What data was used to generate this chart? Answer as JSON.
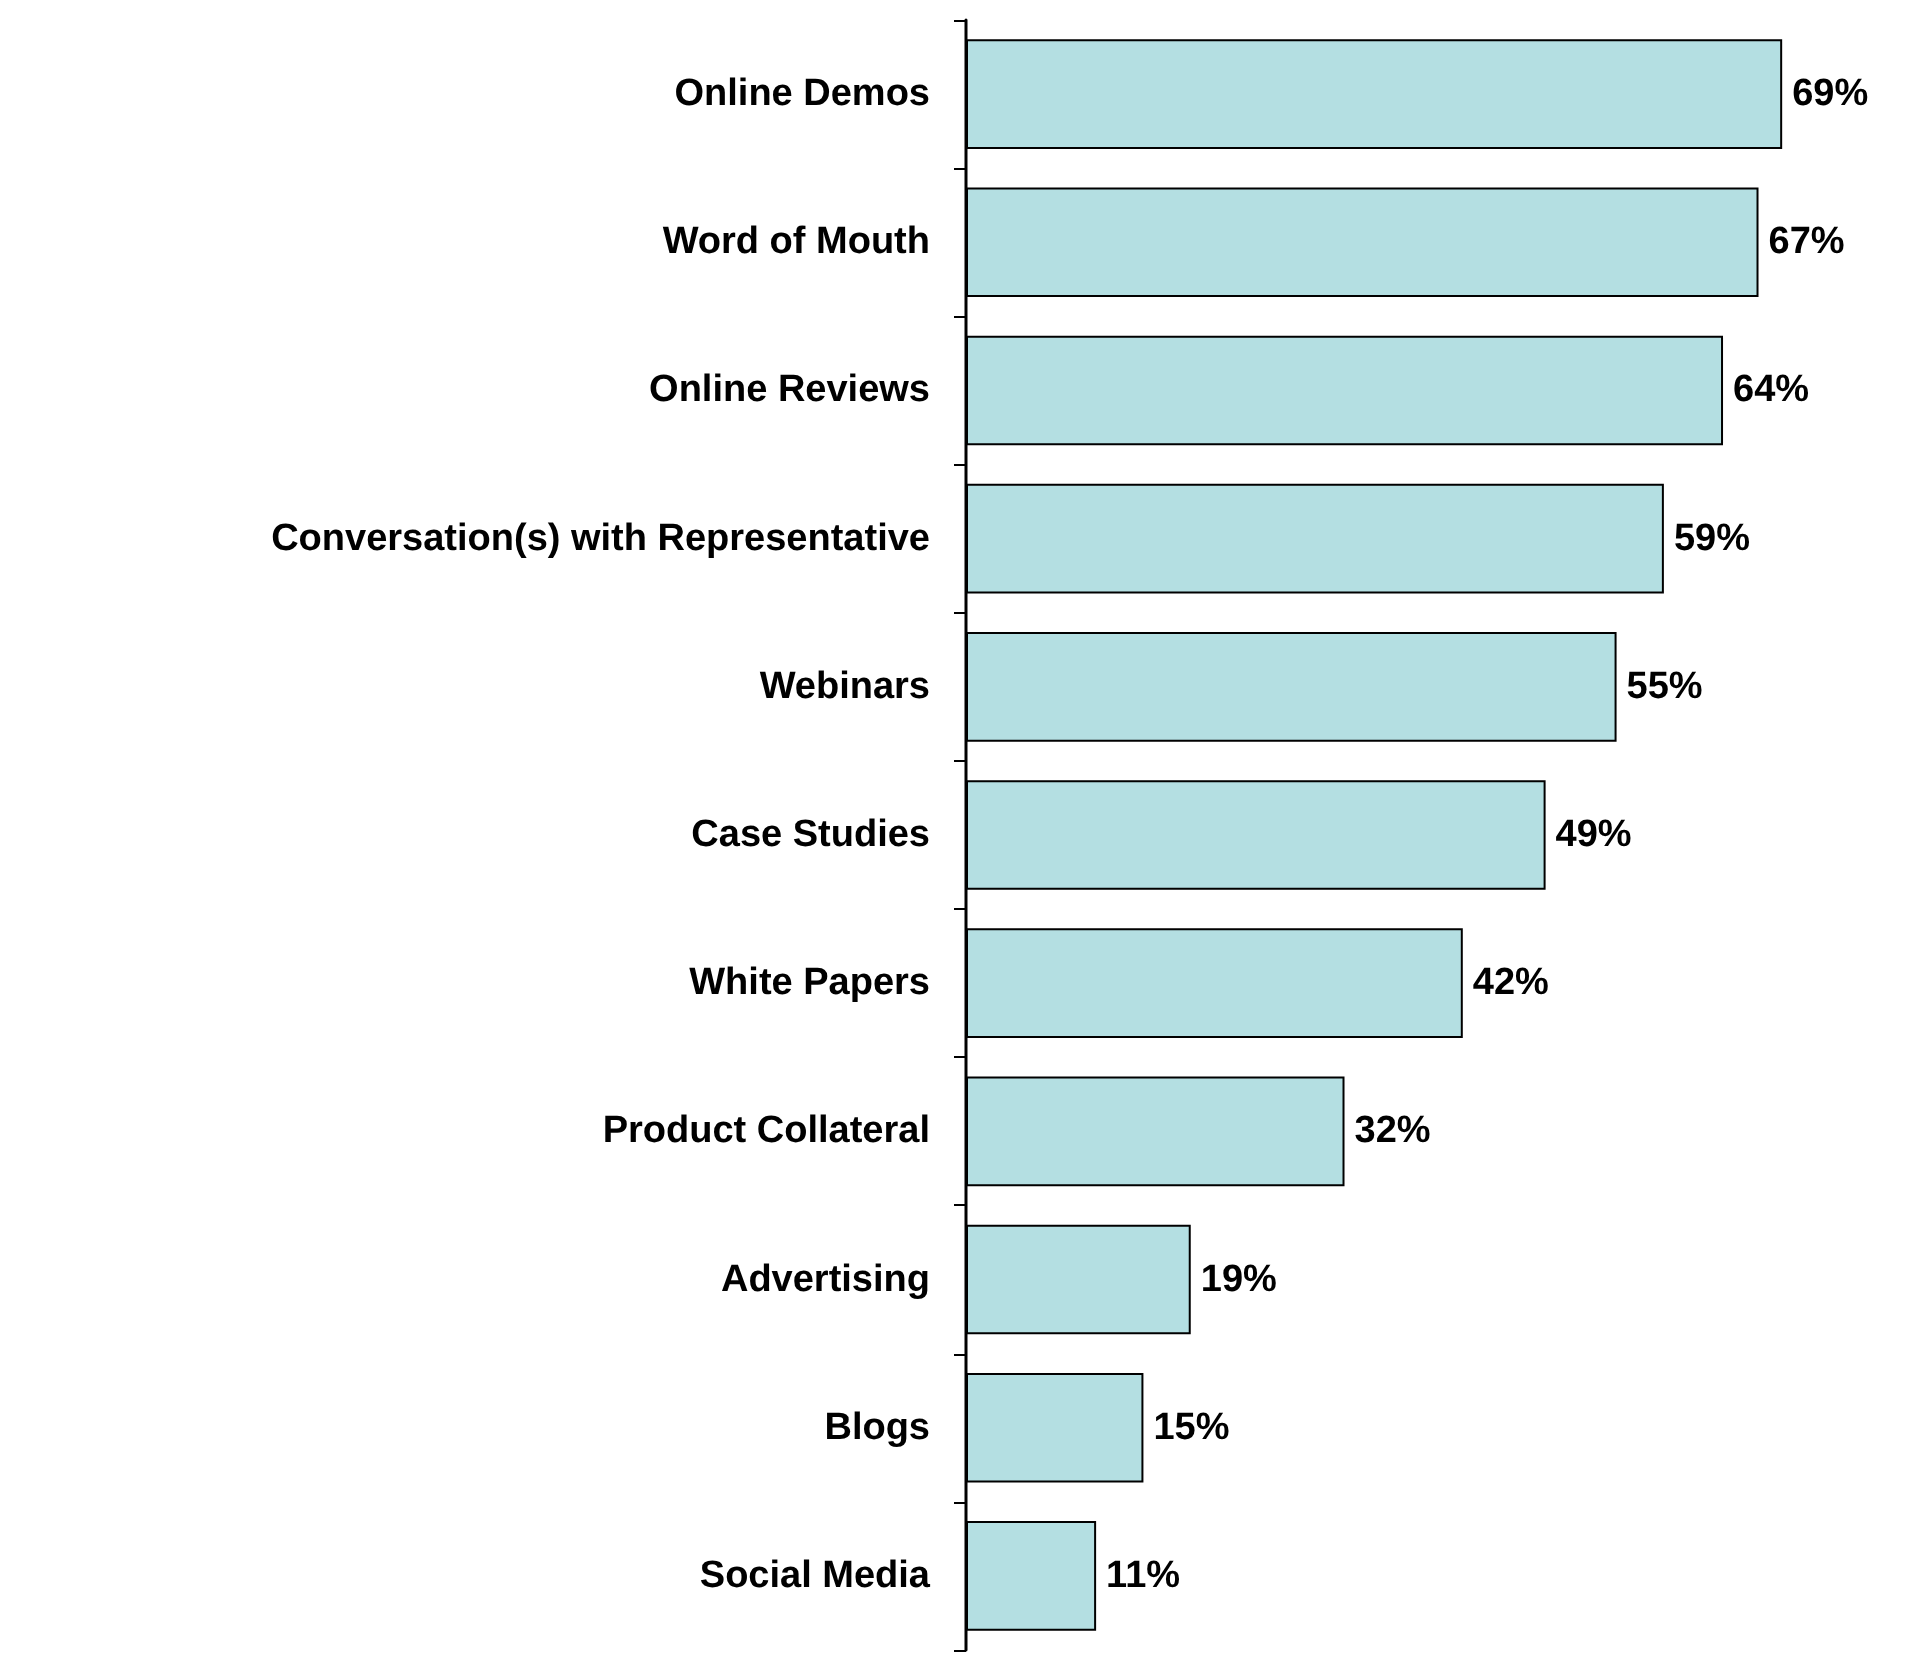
{
  "chart_data": {
    "type": "bar",
    "orientation": "horizontal",
    "tick_labels": "y",
    "categories": [
      "Online Demos",
      "Word of Mouth",
      "Online Reviews",
      "Conversation(s) with Representative",
      "Webinars",
      "Case Studies",
      "White Papers",
      "Product Collateral",
      "Advertising",
      "Blogs",
      "Social Media"
    ],
    "values": [
      69,
      67,
      64,
      59,
      55,
      49,
      42,
      32,
      19,
      15,
      11
    ],
    "value_labels": [
      "69%",
      "67%",
      "64%",
      "59%",
      "55%",
      "49%",
      "42%",
      "32%",
      "19%",
      "15%",
      "11%"
    ],
    "color": "#b4dfe2"
  }
}
